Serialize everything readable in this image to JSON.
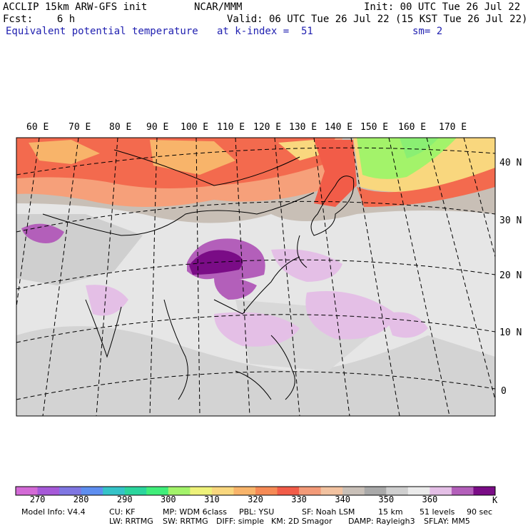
{
  "header": {
    "model": "ACCLIP 15km ARW-GFS init",
    "org": "NCAR/MMM",
    "init": "Init: 00 UTC Tue 26 Jul 22",
    "fcst": "Fcst:    6 h",
    "valid": "Valid: 06 UTC Tue 26 Jul 22 (15 KST Tue 26 Jul 22)",
    "field": "Equivalent potential temperature",
    "level": "at k-index =  51",
    "smooth": "sm= 2"
  },
  "map": {
    "lon_labels": [
      "60 E",
      "70 E",
      "80 E",
      "90 E",
      "100 E",
      "110 E",
      "120 E",
      "130 E",
      "140 E",
      "150 E",
      "160 E",
      "170 E"
    ],
    "lat_labels": [
      "40 N",
      "30 N",
      "20 N",
      "10 N",
      "0"
    ]
  },
  "colorbar": {
    "colors": [
      "#d36ad6",
      "#a659d8",
      "#7f76e2",
      "#5e8ef0",
      "#35c3c8",
      "#2bd59d",
      "#40ee7a",
      "#a3f36a",
      "#eef27a",
      "#f9d77e",
      "#f8b46a",
      "#f68a55",
      "#f25c48",
      "#f39a78",
      "#f2c2a0",
      "#c9c0b8",
      "#a9a9a9",
      "#cfcfcf",
      "#ebebeb",
      "#e4bfe6",
      "#b35fba",
      "#7a0c86"
    ],
    "labels": [
      "270",
      "280",
      "290",
      "300",
      "310",
      "320",
      "330",
      "340",
      "350",
      "360"
    ],
    "unit": "K"
  },
  "footer": {
    "line1": [
      "Model Info: V4.4",
      "CU: KF",
      "MP: WDM 6class",
      "PBL: YSU",
      "SF: Noah LSM",
      "15 km",
      "51 levels",
      "90 sec"
    ],
    "line2": [
      "LW: RRTMG",
      "SW: RRTMG",
      "DIFF: simple",
      "KM: 2D Smagor",
      "DAMP: Rayleigh3",
      "SFLAY: MM5"
    ]
  }
}
